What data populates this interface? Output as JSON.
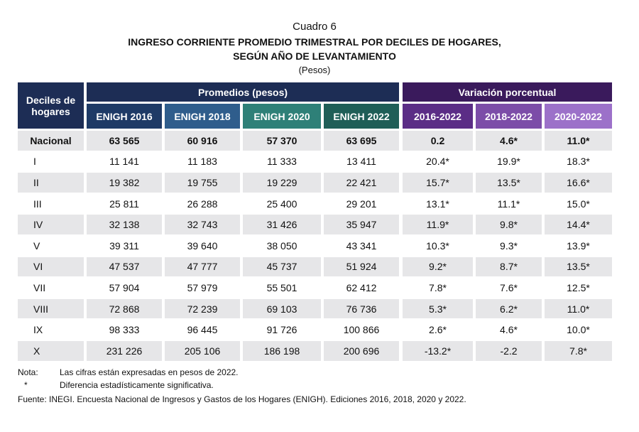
{
  "header": {
    "label": "Cuadro 6",
    "title_line1": "INGRESO CORRIENTE PROMEDIO TRIMESTRAL POR DECILES DE HOGARES,",
    "title_line2": "SEGÚN AÑO DE LEVANTAMIENTO",
    "units": "(Pesos)"
  },
  "table": {
    "row_header": "Deciles de hogares",
    "groups": [
      "Promedios (pesos)",
      "Variación porcentual"
    ],
    "columns": [
      "ENIGH 2016",
      "ENIGH 2018",
      "ENIGH 2020",
      "ENIGH 2022",
      "2016-2022",
      "2018-2022",
      "2020-2022"
    ],
    "rows": [
      [
        "Nacional",
        "63 565",
        "60 916",
        "57 370",
        "63 695",
        "0.2",
        "4.6*",
        "11.0*"
      ],
      [
        "I",
        "11 141",
        "11 183",
        "11 333",
        "13 411",
        "20.4*",
        "19.9*",
        "18.3*"
      ],
      [
        "II",
        "19 382",
        "19 755",
        "19 229",
        "22 421",
        "15.7*",
        "13.5*",
        "16.6*"
      ],
      [
        "III",
        "25 811",
        "26 288",
        "25 400",
        "29 201",
        "13.1*",
        "11.1*",
        "15.0*"
      ],
      [
        "IV",
        "32 138",
        "32 743",
        "31 426",
        "35 947",
        "11.9*",
        "9.8*",
        "14.4*"
      ],
      [
        "V",
        "39 311",
        "39 640",
        "38 050",
        "43 341",
        "10.3*",
        "9.3*",
        "13.9*"
      ],
      [
        "VI",
        "47 537",
        "47 777",
        "45 737",
        "51 924",
        "9.2*",
        "8.7*",
        "13.5*"
      ],
      [
        "VII",
        "57 904",
        "57 979",
        "55 501",
        "62 412",
        "7.8*",
        "7.6*",
        "12.5*"
      ],
      [
        "VIII",
        "72 868",
        "72 239",
        "69 103",
        "76 736",
        "5.3*",
        "6.2*",
        "11.0*"
      ],
      [
        "IX",
        "98 333",
        "96 445",
        "91 726",
        "100 866",
        "2.6*",
        "4.6*",
        "10.0*"
      ],
      [
        "X",
        "231 226",
        "205 106",
        "186 198",
        "200 696",
        "-13.2*",
        "-2.2",
        "7.8*"
      ]
    ]
  },
  "notes": [
    {
      "mark": "Nota:",
      "text": "Las cifras están expresadas en pesos de 2022."
    },
    {
      "mark": "*",
      "text": "Diferencia estadísticamente significativa."
    }
  ],
  "source": "Fuente: INEGI. Encuesta Nacional de Ingresos y Gastos de los Hogares (ENIGH). Ediciones 2016, 2018, 2020 y 2022."
}
